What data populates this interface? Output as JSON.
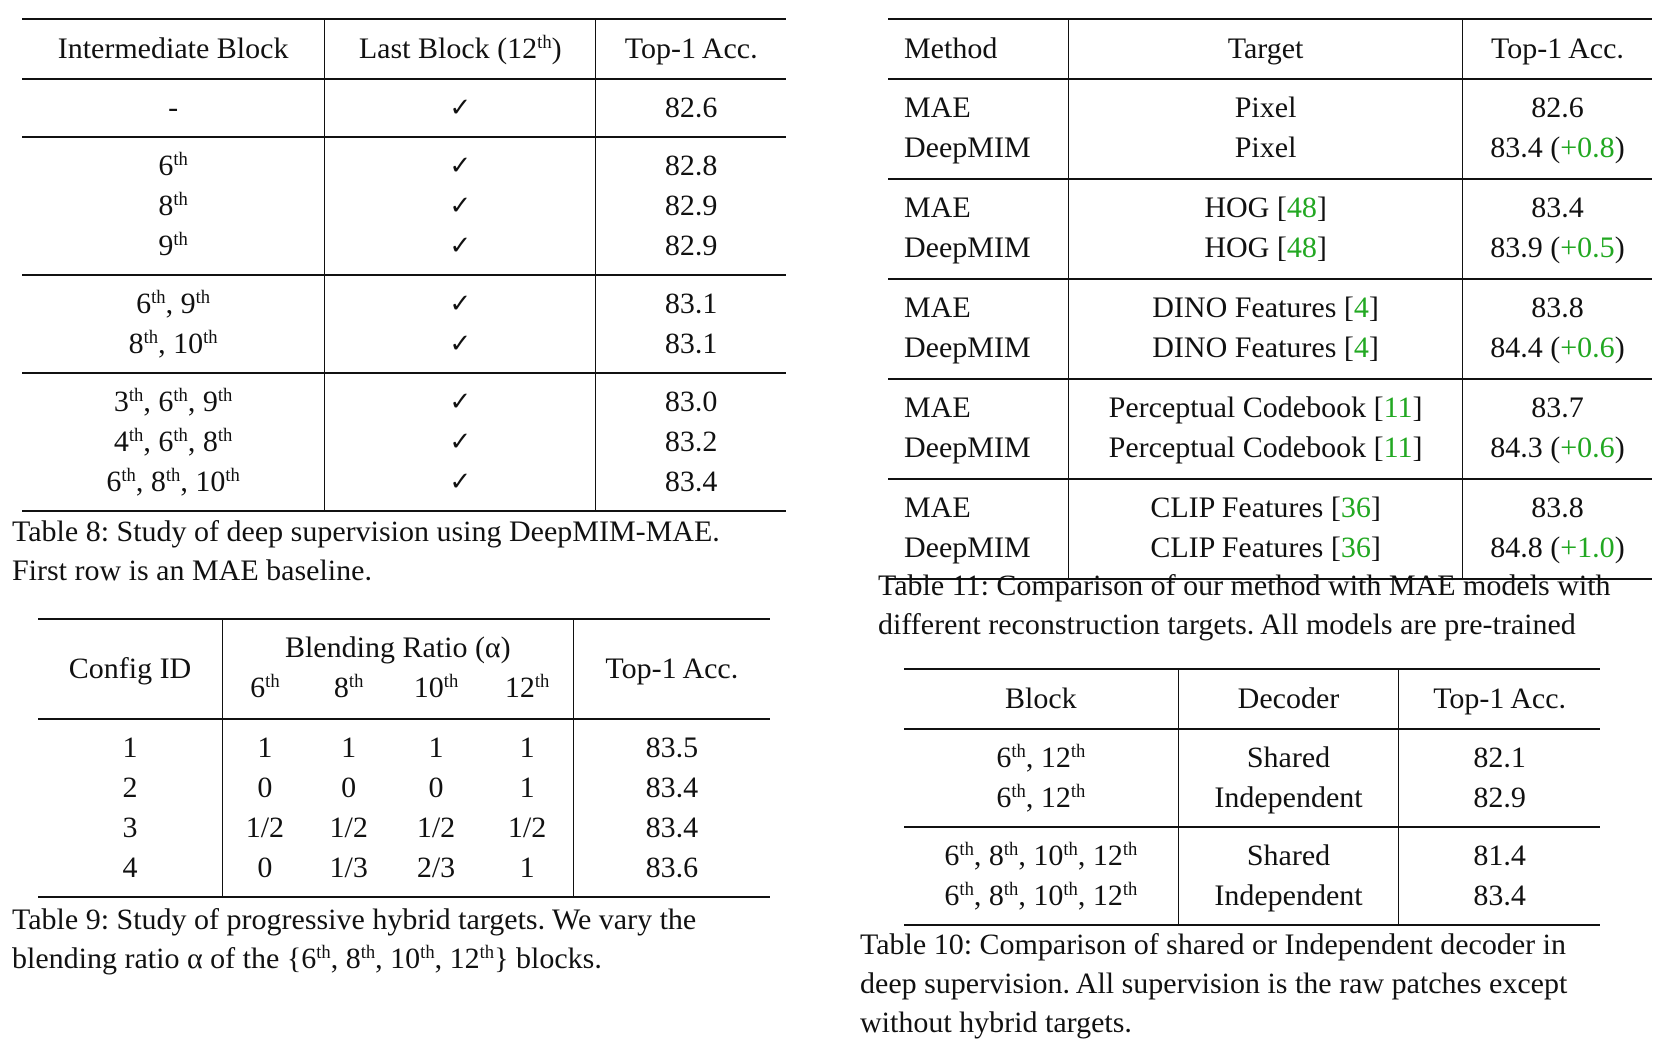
{
  "table8": {
    "headers": [
      "Intermediate Block",
      "Last Block (12",
      "th",
      ")",
      "Top-1 Acc."
    ],
    "groups": [
      [
        {
          "blocks": [
            {
              "text": "-"
            }
          ],
          "last": "✓",
          "acc": "82.6"
        }
      ],
      [
        {
          "blocks": [
            {
              "n": "6",
              "sup": "th"
            }
          ],
          "last": "✓",
          "acc": "82.8"
        },
        {
          "blocks": [
            {
              "n": "8",
              "sup": "th"
            }
          ],
          "last": "✓",
          "acc": "82.9"
        },
        {
          "blocks": [
            {
              "n": "9",
              "sup": "th"
            }
          ],
          "last": "✓",
          "acc": "82.9"
        }
      ],
      [
        {
          "blocks": [
            {
              "n": "6",
              "sup": "th"
            },
            {
              "n": "9",
              "sup": "th"
            }
          ],
          "last": "✓",
          "acc": "83.1"
        },
        {
          "blocks": [
            {
              "n": "8",
              "sup": "th"
            },
            {
              "n": "10",
              "sup": "th"
            }
          ],
          "last": "✓",
          "acc": "83.1"
        }
      ],
      [
        {
          "blocks": [
            {
              "n": "3",
              "sup": "th"
            },
            {
              "n": "6",
              "sup": "th"
            },
            {
              "n": "9",
              "sup": "th"
            }
          ],
          "last": "✓",
          "acc": "83.0"
        },
        {
          "blocks": [
            {
              "n": "4",
              "sup": "th"
            },
            {
              "n": "6",
              "sup": "th"
            },
            {
              "n": "8",
              "sup": "th"
            }
          ],
          "last": "✓",
          "acc": "83.2"
        },
        {
          "blocks": [
            {
              "n": "6",
              "sup": "th"
            },
            {
              "n": "8",
              "sup": "th"
            },
            {
              "n": "10",
              "sup": "th"
            }
          ],
          "last": "✓",
          "acc": "83.4"
        }
      ]
    ],
    "caption": [
      "Table 8: Study of deep supervision using DeepMIM-MAE.",
      "First row is an MAE baseline."
    ]
  },
  "table9": {
    "config_header": "Config ID",
    "blend_header": "Blending Ratio (α)",
    "blend_cols": [
      {
        "n": "6",
        "sup": "th"
      },
      {
        "n": "8",
        "sup": "th"
      },
      {
        "n": "10",
        "sup": "th"
      },
      {
        "n": "12",
        "sup": "th"
      }
    ],
    "acc_header": "Top-1 Acc.",
    "rows": [
      [
        "1",
        "1",
        "1",
        "1",
        "1",
        "83.5"
      ],
      [
        "2",
        "0",
        "0",
        "0",
        "1",
        "83.4"
      ],
      [
        "3",
        "1/2",
        "1/2",
        "1/2",
        "1/2",
        "83.4"
      ],
      [
        "4",
        "0",
        "1/3",
        "2/3",
        "1",
        "83.6"
      ]
    ],
    "caption_line1": "Table 9: Study of progressive hybrid targets. We vary the",
    "caption_line2": {
      "pre": "blending ratio α of the {",
      "items": [
        {
          "n": "6",
          "sup": "th"
        },
        {
          "n": "8",
          "sup": "th"
        },
        {
          "n": "10",
          "sup": "th"
        },
        {
          "n": "12",
          "sup": "th"
        }
      ],
      "post": "} blocks."
    }
  },
  "table11": {
    "headers": [
      "Method",
      "Target",
      "Top-1 Acc."
    ],
    "groups": [
      [
        {
          "method": "MAE",
          "target": "Pixel",
          "cite": "",
          "acc": "82.6",
          "delta": ""
        },
        {
          "method": "DeepMIM",
          "target": "Pixel",
          "cite": "",
          "acc": "83.4",
          "delta": "+0.8"
        }
      ],
      [
        {
          "method": "MAE",
          "target": "HOG",
          "cite": "48",
          "acc": "83.4",
          "delta": ""
        },
        {
          "method": "DeepMIM",
          "target": "HOG",
          "cite": "48",
          "acc": "83.9",
          "delta": "+0.5"
        }
      ],
      [
        {
          "method": "MAE",
          "target": "DINO Features",
          "cite": "4",
          "acc": "83.8",
          "delta": ""
        },
        {
          "method": "DeepMIM",
          "target": "DINO Features",
          "cite": "4",
          "acc": "84.4",
          "delta": "+0.6"
        }
      ],
      [
        {
          "method": "MAE",
          "target": "Perceptual Codebook",
          "cite": "11",
          "acc": "83.7",
          "delta": ""
        },
        {
          "method": "DeepMIM",
          "target": "Perceptual Codebook",
          "cite": "11",
          "acc": "84.3",
          "delta": "+0.6"
        }
      ],
      [
        {
          "method": "MAE",
          "target": "CLIP Features",
          "cite": "36",
          "acc": "83.8",
          "delta": ""
        },
        {
          "method": "DeepMIM",
          "target": "CLIP Features",
          "cite": "36",
          "acc": "84.8",
          "delta": "+1.0"
        }
      ]
    ],
    "caption": [
      "Table 11: Comparison of our method with MAE models with",
      "different reconstruction targets. All models are pre-trained"
    ]
  },
  "table10": {
    "headers": [
      "Block",
      "Decoder",
      "Top-1 Acc."
    ],
    "groups": [
      [
        {
          "blocks": [
            {
              "n": "6",
              "sup": "th"
            },
            {
              "n": "12",
              "sup": "th"
            }
          ],
          "decoder": "Shared",
          "acc": "82.1"
        },
        {
          "blocks": [
            {
              "n": "6",
              "sup": "th"
            },
            {
              "n": "12",
              "sup": "th"
            }
          ],
          "decoder": "Independent",
          "acc": "82.9"
        }
      ],
      [
        {
          "blocks": [
            {
              "n": "6",
              "sup": "th"
            },
            {
              "n": "8",
              "sup": "th"
            },
            {
              "n": "10",
              "sup": "th"
            },
            {
              "n": "12",
              "sup": "th"
            }
          ],
          "decoder": "Shared",
          "acc": "81.4"
        },
        {
          "blocks": [
            {
              "n": "6",
              "sup": "th"
            },
            {
              "n": "8",
              "sup": "th"
            },
            {
              "n": "10",
              "sup": "th"
            },
            {
              "n": "12",
              "sup": "th"
            }
          ],
          "decoder": "Independent",
          "acc": "83.4"
        }
      ]
    ],
    "caption": [
      "Table 10: Comparison of shared or Independent decoder in",
      "deep supervision. All supervision is the raw patches except",
      "without hybrid targets."
    ]
  }
}
